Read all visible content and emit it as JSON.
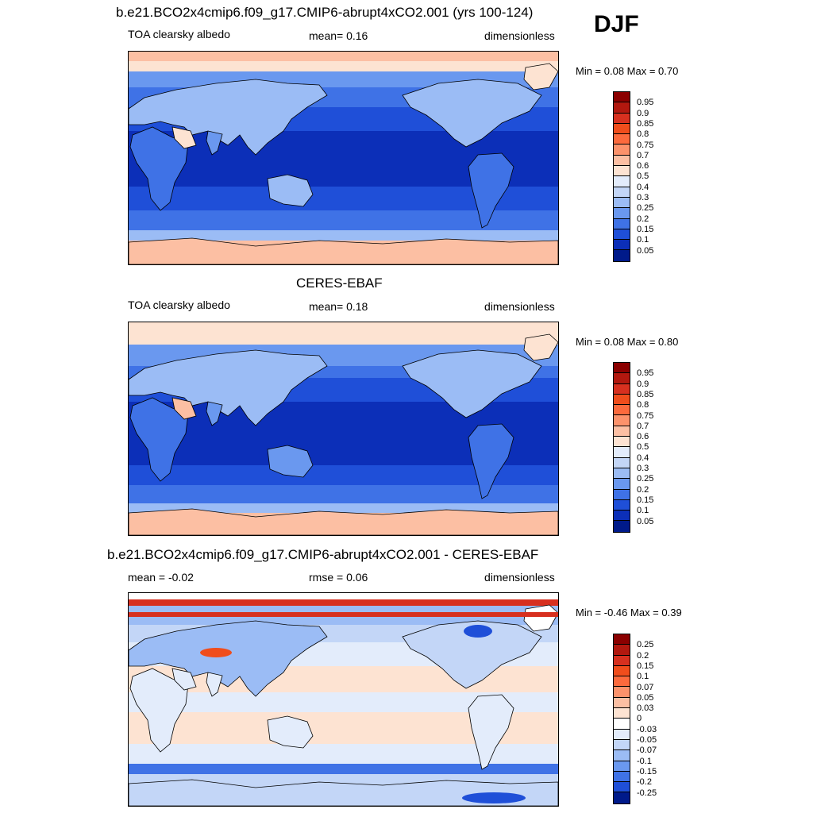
{
  "djf": "DJF",
  "panels": [
    {
      "title": "b.e21.BCO2x4cmip6.f09_g17.CMIP6-abrupt4xCO2.001 (yrs 100-124)",
      "left_label": "TOA clearsky albedo",
      "center_label": "mean=   0.16",
      "right_label": "dimensionless",
      "minmax": "Min =    0.08 Max =    0.70",
      "colorbar_labels": [
        "0.95",
        "0.9",
        "0.85",
        "0.8",
        "0.75",
        "0.7",
        "0.6",
        "0.5",
        "0.4",
        "0.3",
        "0.25",
        "0.2",
        "0.15",
        "0.1",
        "0.05"
      ],
      "colorbar_colors": [
        "#8b0000",
        "#b2180f",
        "#d7301f",
        "#f04d1c",
        "#fc6a3d",
        "#fc926b",
        "#fcbfa3",
        "#fde3d2",
        "#e3ecfb",
        "#c3d6f7",
        "#9bbcf5",
        "#6a98ef",
        "#3f72e6",
        "#1f4fd8",
        "#0c2fb8",
        "#001a8a"
      ],
      "field": "model"
    },
    {
      "title": "CERES-EBAF",
      "left_label": "TOA clearsky albedo",
      "center_label": "mean=   0.18",
      "right_label": "dimensionless",
      "minmax": "Min =    0.08 Max =    0.80",
      "colorbar_labels": [
        "0.95",
        "0.9",
        "0.85",
        "0.8",
        "0.75",
        "0.7",
        "0.6",
        "0.5",
        "0.4",
        "0.3",
        "0.25",
        "0.2",
        "0.15",
        "0.1",
        "0.05"
      ],
      "colorbar_colors": [
        "#8b0000",
        "#b2180f",
        "#d7301f",
        "#f04d1c",
        "#fc6a3d",
        "#fc926b",
        "#fcbfa3",
        "#fde3d2",
        "#e3ecfb",
        "#c3d6f7",
        "#9bbcf5",
        "#6a98ef",
        "#3f72e6",
        "#1f4fd8",
        "#0c2fb8",
        "#001a8a"
      ],
      "field": "obs"
    },
    {
      "title": "b.e21.BCO2x4cmip6.f09_g17.CMIP6-abrupt4xCO2.001 - CERES-EBAF",
      "left_label": "mean =  -0.02",
      "center_label": "rmse =   0.06",
      "right_label": "dimensionless",
      "minmax": "Min =  -0.46 Max =    0.39",
      "colorbar_labels": [
        "0.25",
        "0.2",
        "0.15",
        "0.1",
        "0.07",
        "0.05",
        "0.03",
        "0",
        "-0.03",
        "-0.05",
        "-0.07",
        "-0.1",
        "-0.15",
        "-0.2",
        "-0.25"
      ],
      "colorbar_colors": [
        "#8b0000",
        "#b2180f",
        "#d7301f",
        "#f04d1c",
        "#fc6a3d",
        "#fc926b",
        "#fcbfa3",
        "#fde3d2",
        "#ffffff",
        "#e3ecfb",
        "#c3d6f7",
        "#9bbcf5",
        "#6a98ef",
        "#3f72e6",
        "#1f4fd8",
        "#001a8a"
      ],
      "field": "diff"
    }
  ]
}
